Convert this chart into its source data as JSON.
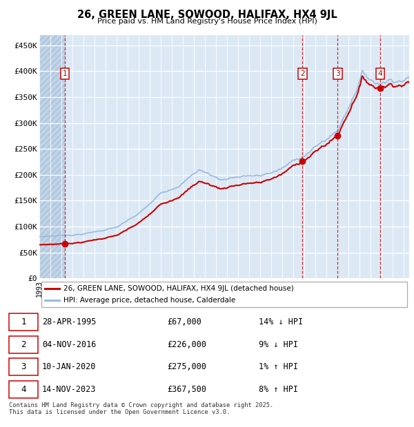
{
  "title": "26, GREEN LANE, SOWOOD, HALIFAX, HX4 9JL",
  "subtitle": "Price paid vs. HM Land Registry's House Price Index (HPI)",
  "legend_label_red": "26, GREEN LANE, SOWOOD, HALIFAX, HX4 9JL (detached house)",
  "legend_label_blue": "HPI: Average price, detached house, Calderdale",
  "footer": "Contains HM Land Registry data © Crown copyright and database right 2025.\nThis data is licensed under the Open Government Licence v3.0.",
  "xlim_start": 1993.0,
  "xlim_end": 2026.5,
  "ylim_min": 0,
  "ylim_max": 470000,
  "yticks": [
    0,
    50000,
    100000,
    150000,
    200000,
    250000,
    300000,
    350000,
    400000,
    450000
  ],
  "ytick_labels": [
    "£0",
    "£50K",
    "£100K",
    "£150K",
    "£200K",
    "£250K",
    "£300K",
    "£350K",
    "£400K",
    "£450K"
  ],
  "plot_bg_color": "#dce9f5",
  "grid_color": "#ffffff",
  "red_color": "#cc0000",
  "blue_color": "#99bbdd",
  "sale_points": [
    {
      "label": "1",
      "year": 1995.33,
      "price": 67000,
      "date_str": "28-APR-1995",
      "price_str": "£67,000",
      "pct_str": "14% ↓ HPI"
    },
    {
      "label": "2",
      "year": 2016.84,
      "price": 226000,
      "date_str": "04-NOV-2016",
      "price_str": "£226,000",
      "pct_str": "9% ↓ HPI"
    },
    {
      "label": "3",
      "year": 2020.03,
      "price": 275000,
      "date_str": "10-JAN-2020",
      "price_str": "£275,000",
      "pct_str": "1% ↑ HPI"
    },
    {
      "label": "4",
      "year": 2023.87,
      "price": 367500,
      "date_str": "14-NOV-2023",
      "price_str": "£367,500",
      "pct_str": "8% ↑ HPI"
    }
  ]
}
